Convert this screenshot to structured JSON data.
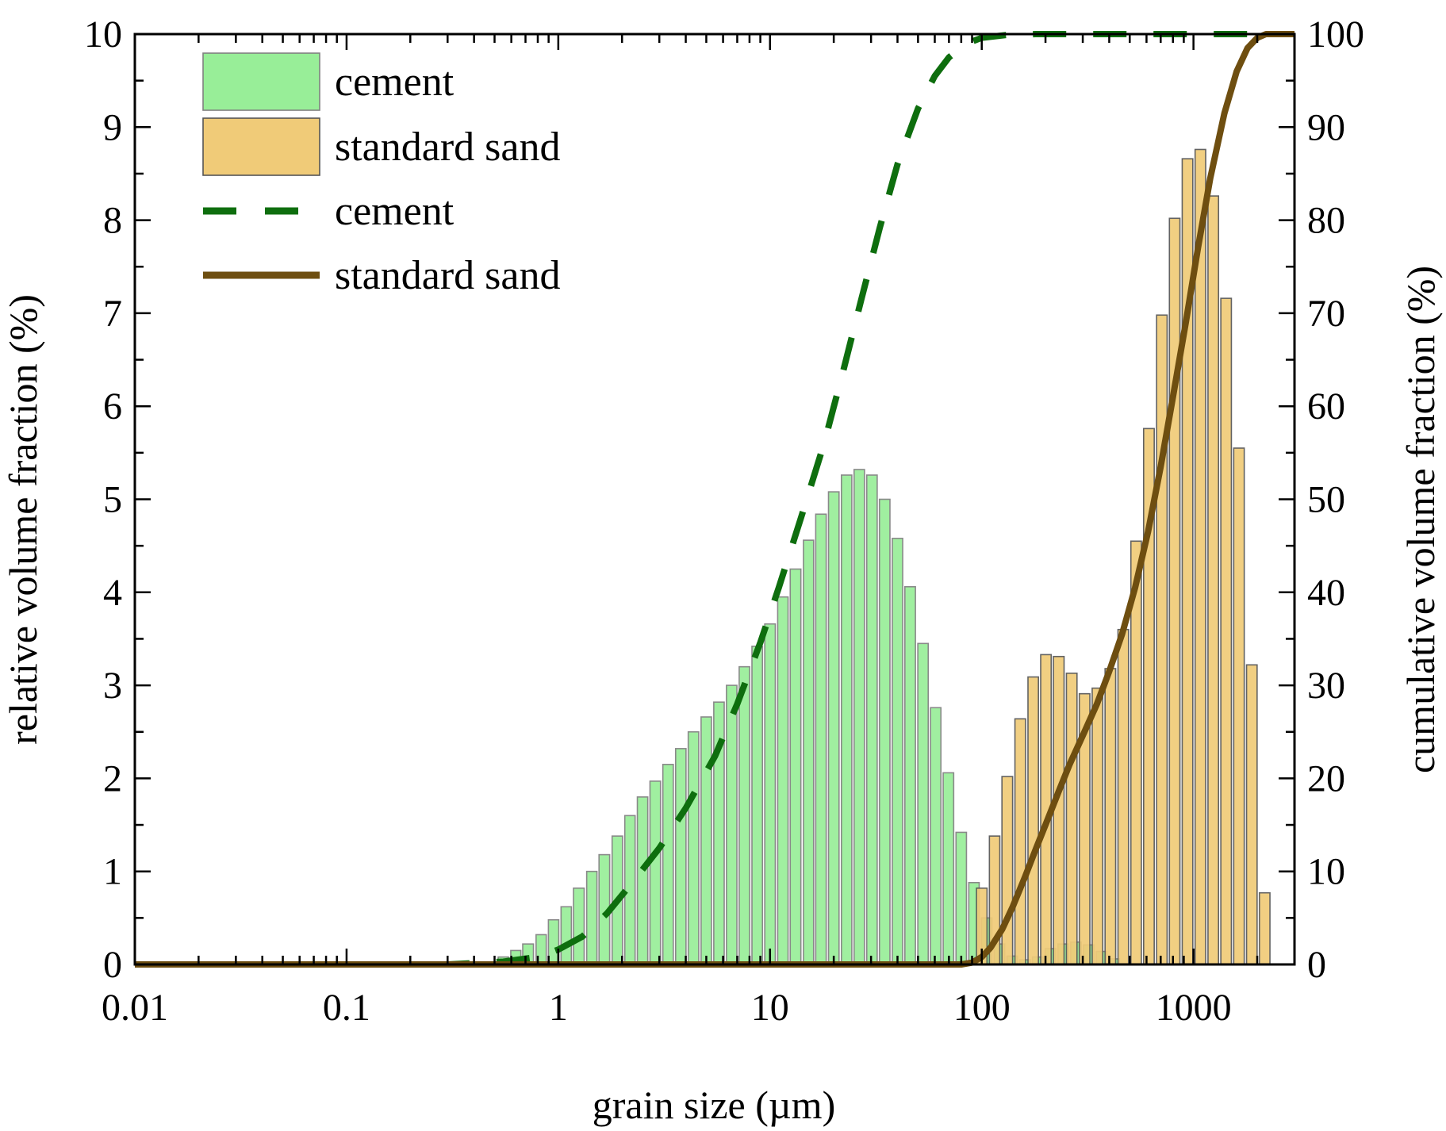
{
  "chart_data": {
    "type": "bar",
    "xlabel": "grain size (µm)",
    "ylabel": "relative volume fraction (%)",
    "y2label": "cumulative volume fraction (%)",
    "x_scale": "log",
    "xlim": [
      0.01,
      3000
    ],
    "ylim": [
      0,
      10
    ],
    "y2lim": [
      0,
      100
    ],
    "x_ticks": [
      0.01,
      0.1,
      1,
      10,
      100,
      1000
    ],
    "x_tick_labels": [
      "0.01",
      "0.1",
      "1",
      "10",
      "100",
      "1000"
    ],
    "y_ticks": [
      0,
      1,
      2,
      3,
      4,
      5,
      6,
      7,
      8,
      9,
      10
    ],
    "y_tick_labels": [
      "0",
      "1",
      "2",
      "3",
      "4",
      "5",
      "6",
      "7",
      "8",
      "9",
      "10"
    ],
    "y2_ticks": [
      0,
      10,
      20,
      30,
      40,
      50,
      60,
      70,
      80,
      90,
      100
    ],
    "y2_tick_labels": [
      "0",
      "10",
      "20",
      "30",
      "40",
      "50",
      "60",
      "70",
      "80",
      "90",
      "100"
    ],
    "legend_position": "top-left",
    "legend": [
      {
        "label": "cement",
        "kind": "bar",
        "color": "#98ee98"
      },
      {
        "label": "standard sand",
        "kind": "bar",
        "color": "#f0cb78"
      },
      {
        "label": "cement",
        "kind": "dashed-line",
        "color": "#0e6e0e"
      },
      {
        "label": "standard sand",
        "kind": "line",
        "color": "#6e4e10"
      }
    ],
    "series": [
      {
        "name": "cement",
        "kind": "histogram",
        "color": "#98ee98",
        "edge": "#808080",
        "x": [
          0.55,
          0.63,
          0.72,
          0.83,
          0.95,
          1.09,
          1.25,
          1.44,
          1.65,
          1.9,
          2.18,
          2.5,
          2.87,
          3.3,
          3.79,
          4.35,
          5.0,
          5.74,
          6.59,
          7.57,
          8.7,
          10.0,
          11.5,
          13.2,
          15.2,
          17.4,
          20.0,
          23.0,
          26.4,
          30.3,
          34.8,
          40.0,
          45.9,
          52.8,
          60.6,
          69.6,
          80.0,
          91.9,
          105.5,
          121.2,
          139.3,
          160.0,
          183.8,
          211.1,
          242.5,
          278.6,
          320.0,
          367.6,
          422.2
        ],
        "values": [
          0.08,
          0.15,
          0.22,
          0.32,
          0.48,
          0.62,
          0.82,
          1.0,
          1.18,
          1.38,
          1.6,
          1.8,
          1.97,
          2.15,
          2.32,
          2.5,
          2.66,
          2.82,
          3.0,
          3.2,
          3.42,
          3.66,
          3.95,
          4.25,
          4.56,
          4.84,
          5.08,
          5.26,
          5.32,
          5.26,
          5.0,
          4.58,
          4.06,
          3.45,
          2.76,
          2.06,
          1.42,
          0.88,
          0.5,
          0.22,
          0.09,
          0.05,
          0.08,
          0.17,
          0.22,
          0.24,
          0.21,
          0.14,
          0.06
        ]
      },
      {
        "name": "standard sand",
        "kind": "histogram",
        "color": "#f0cb78",
        "edge": "#555555",
        "x": [
          100,
          115,
          132,
          152,
          175,
          201,
          231,
          266,
          306,
          352,
          405,
          466,
          536,
          616,
          709,
          815,
          937,
          1078,
          1240,
          1426,
          1640,
          1886,
          2169
        ],
        "values": [
          0.82,
          1.38,
          2.02,
          2.64,
          3.09,
          3.33,
          3.31,
          3.13,
          2.91,
          2.97,
          3.18,
          3.6,
          4.55,
          5.76,
          6.98,
          8.02,
          8.66,
          8.76,
          8.26,
          7.16,
          5.55,
          3.22,
          0.77
        ]
      },
      {
        "name": "cement",
        "kind": "cumulative-line",
        "axis": "right",
        "style": "dashed",
        "color": "#0e6e0e",
        "x": [
          0.01,
          0.3,
          0.55,
          0.8,
          1.0,
          1.3,
          1.7,
          2.2,
          3.0,
          4.0,
          5.5,
          7.0,
          9.0,
          11.0,
          14.0,
          18.0,
          22.0,
          27.0,
          33.0,
          40.0,
          50.0,
          60.0,
          70.0,
          85.0,
          100.0,
          130.0,
          180.0,
          3000.0
        ],
        "values": [
          0.0,
          0.0,
          0.3,
          0.8,
          1.6,
          3.0,
          5.5,
          8.6,
          12.5,
          16.8,
          22.4,
          28.0,
          34.6,
          40.5,
          48.0,
          56.0,
          63.5,
          71.5,
          79.2,
          86.0,
          92.0,
          95.5,
          97.5,
          99.0,
          99.6,
          99.9,
          100.0,
          100.0
        ]
      },
      {
        "name": "standard sand",
        "kind": "cumulative-line",
        "axis": "right",
        "style": "solid",
        "color": "#6e4e10",
        "x": [
          0.01,
          80.0,
          90.0,
          100.0,
          110.0,
          125.0,
          140.0,
          160.0,
          180.0,
          200.0,
          230.0,
          260.0,
          300.0,
          350.0,
          400.0,
          460.0,
          530.0,
          610.0,
          700.0,
          800.0,
          920.0,
          1050.0,
          1200.0,
          1400.0,
          1600.0,
          1800.0,
          2000.0,
          2200.0,
          3000.0
        ],
        "values": [
          0.0,
          0.0,
          0.2,
          0.8,
          1.8,
          3.8,
          6.2,
          9.4,
          12.4,
          15.0,
          18.5,
          21.5,
          24.6,
          28.0,
          31.5,
          35.5,
          40.5,
          46.5,
          53.5,
          61.0,
          69.0,
          77.0,
          84.5,
          91.5,
          96.0,
          98.5,
          99.6,
          100.0,
          100.0
        ]
      }
    ]
  }
}
